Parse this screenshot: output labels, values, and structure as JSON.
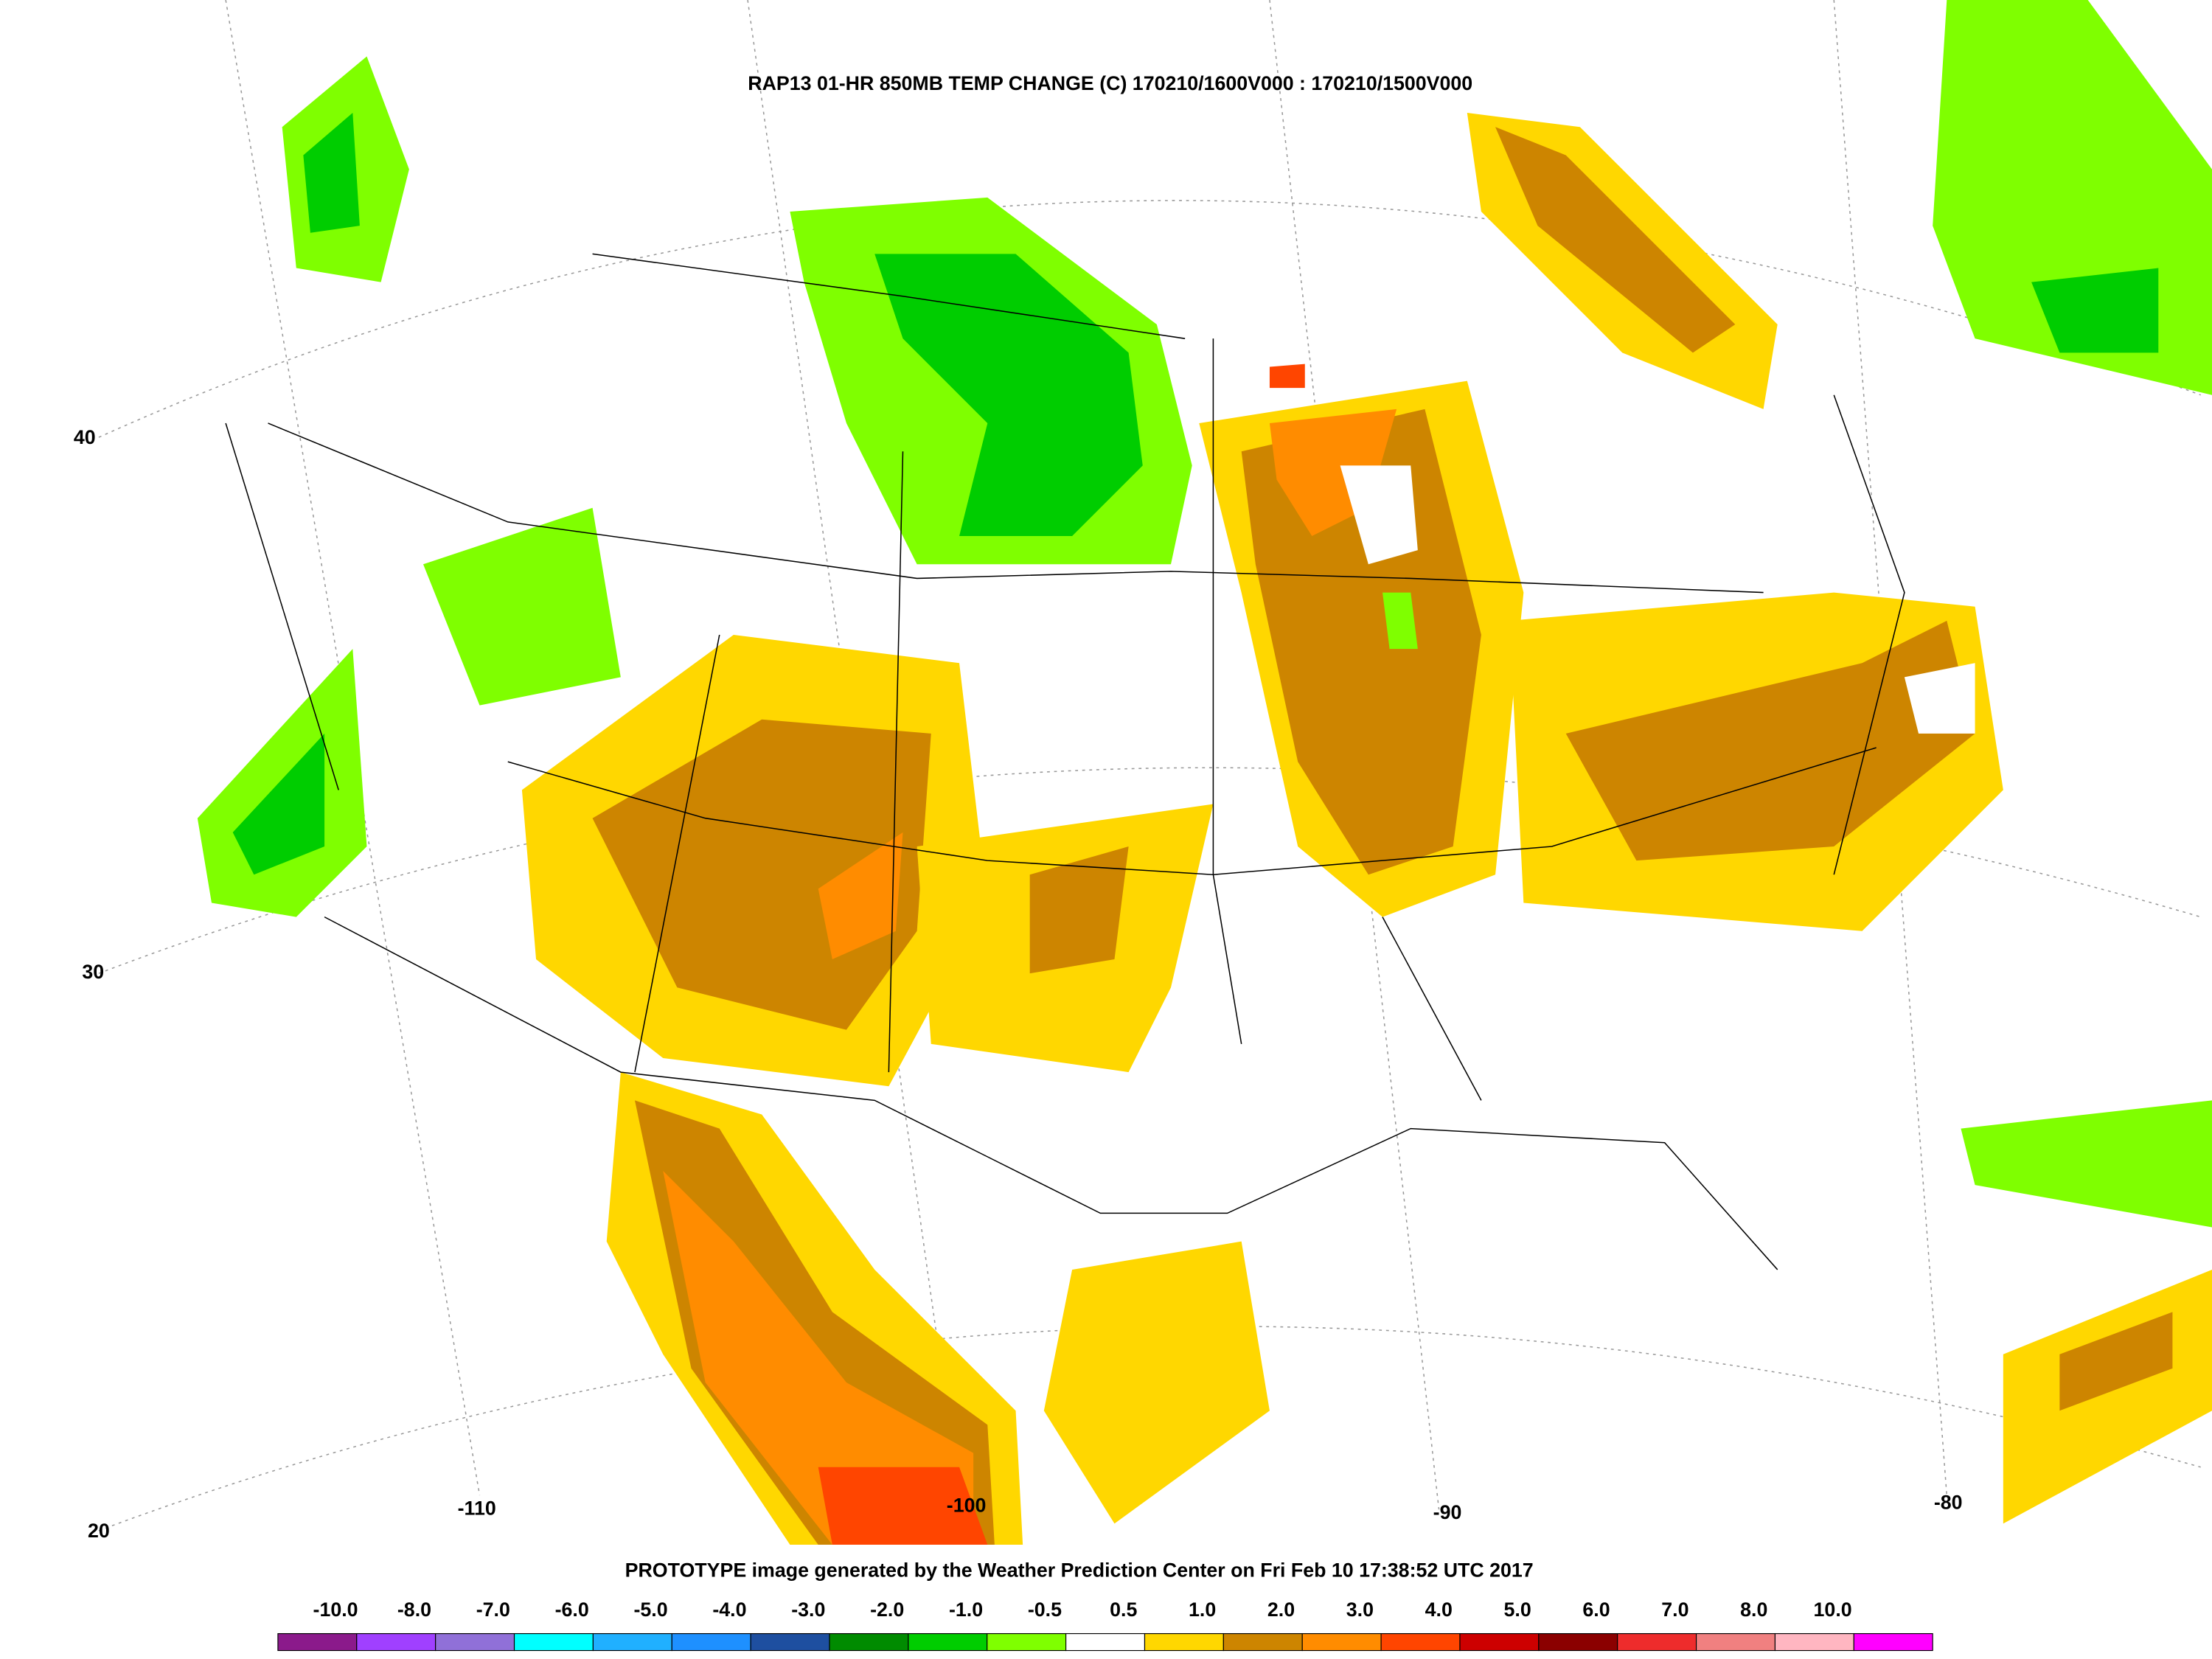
{
  "map": {
    "title": "RAP13 01-HR 850MB TEMP CHANGE (C) 170210/1600V000 : 170210/1500V000",
    "footer": "PROTOTYPE image generated by the Weather Prediction Center on Fri Feb 10 17:38:52 UTC 2017",
    "lat_labels": [
      "40",
      "30",
      "20"
    ],
    "lon_labels": [
      "-110",
      "-100",
      "-90",
      "-80"
    ],
    "colorbar": {
      "labels": [
        "-10.0",
        "-8.0",
        "-7.0",
        "-6.0",
        "-5.0",
        "-4.0",
        "-3.0",
        "-2.0",
        "-1.0",
        "-0.5",
        "0.5",
        "1.0",
        "2.0",
        "3.0",
        "4.0",
        "5.0",
        "6.0",
        "7.0",
        "8.0",
        "10.0"
      ],
      "colors": [
        "#8b1a8b",
        "#a040ff",
        "#9070d8",
        "#00ffff",
        "#20b0ff",
        "#1e90ff",
        "#1e4fa0",
        "#008b00",
        "#00cd00",
        "#7fff00",
        "#ffffff",
        "#ffd700",
        "#cd8500",
        "#ff8c00",
        "#ff4500",
        "#cd0000",
        "#8b0000",
        "#ee2c2c",
        "#f08080",
        "#ffb6c1",
        "#ff00ff"
      ]
    }
  }
}
